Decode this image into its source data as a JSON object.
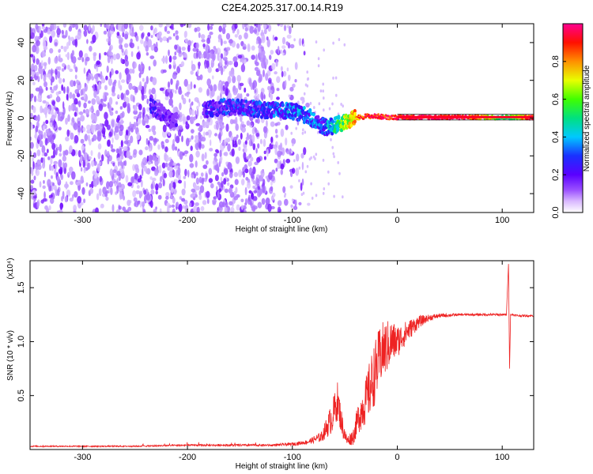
{
  "title": "C2E4.2025.317.00.14.R19",
  "chart_data": [
    {
      "type": "heatmap",
      "title": "C2E4.2025.317.00.14.R19",
      "xlabel": "Height of straight line (km)",
      "ylabel": "Frequency (Hz)",
      "xlim": [
        -350,
        130
      ],
      "ylim": [
        -50,
        50
      ],
      "xticks": [
        -300,
        -200,
        -100,
        0,
        100
      ],
      "yticks": [
        -40,
        -20,
        0,
        20,
        40
      ],
      "colorbar": {
        "label": "Normalized spectral amplitude",
        "range": [
          0.0,
          1.0
        ],
        "ticks": [
          0.0,
          0.2,
          0.4,
          0.6,
          0.8
        ],
        "tick_labels": [
          "0.0",
          "0.2",
          "0.4",
          "0.6",
          "0.8"
        ],
        "colors": [
          "#ffffff",
          "#b07cff",
          "#6a00ff",
          "#2020ff",
          "#00c8ff",
          "#00e080",
          "#40ff00",
          "#ffff00",
          "#ff8000",
          "#ff0000",
          "#ff0080"
        ]
      },
      "signal_track": {
        "height_km": [
          -235,
          -225,
          -215,
          -180,
          -160,
          -140,
          -120,
          -110,
          -95,
          -85,
          -75,
          -68,
          -60,
          -50,
          -40,
          -30,
          -20,
          -10,
          0,
          20,
          60,
          105,
          130
        ],
        "frequency_hz": [
          6,
          3,
          -2,
          5,
          6,
          5,
          4,
          4,
          3,
          1,
          -3,
          -5,
          -4,
          -2,
          0,
          1,
          1,
          0.5,
          0.5,
          0.5,
          0.5,
          0.5,
          0.5
        ],
        "amplitude": [
          0.2,
          0.15,
          0.1,
          0.2,
          0.25,
          0.25,
          0.25,
          0.3,
          0.35,
          0.3,
          0.3,
          0.3,
          0.45,
          0.6,
          0.8,
          0.9,
          0.9,
          0.9,
          0.92,
          0.95,
          0.95,
          0.5,
          0.95
        ]
      },
      "noise_region_km": [
        -350,
        -100
      ],
      "grid": false
    },
    {
      "type": "line",
      "xlabel": "Height of straight line (km)",
      "ylabel": "SNR (10 * v/v)",
      "y_multiplier": "(x10⁴)",
      "xlim": [
        -350,
        130
      ],
      "ylim": [
        0,
        1.75
      ],
      "xticks": [
        -300,
        -200,
        -100,
        0,
        100
      ],
      "yticks": [
        0.5,
        1.0,
        1.5
      ],
      "ytick_labels": [
        "0.5",
        "1.0",
        "1.5"
      ],
      "color": "#ee2222",
      "series": [
        {
          "x": [
            -350,
            -250,
            -200,
            -150,
            -120,
            -100,
            -85,
            -72,
            -62,
            -57,
            -52,
            -48,
            -42,
            -37,
            -30,
            -25,
            -20,
            -15,
            -10,
            -5,
            0,
            10,
            20,
            30,
            40,
            60,
            80,
            95,
            100,
            104,
            106,
            107,
            108,
            110,
            115,
            130
          ],
          "y": [
            0.03,
            0.03,
            0.04,
            0.04,
            0.04,
            0.05,
            0.07,
            0.12,
            0.3,
            0.45,
            0.2,
            0.08,
            0.12,
            0.3,
            0.45,
            0.6,
            0.75,
            0.9,
            0.95,
            1.0,
            1.0,
            1.1,
            1.18,
            1.22,
            1.24,
            1.25,
            1.25,
            1.25,
            1.25,
            1.25,
            1.72,
            0.75,
            1.25,
            1.25,
            1.24,
            1.24
          ],
          "noise_amplitude": [
            0.006,
            0.006,
            0.008,
            0.01,
            0.01,
            0.015,
            0.02,
            0.05,
            0.15,
            0.18,
            0.1,
            0.04,
            0.08,
            0.15,
            0.22,
            0.28,
            0.3,
            0.28,
            0.25,
            0.2,
            0.15,
            0.1,
            0.06,
            0.03,
            0.02,
            0.01,
            0.01,
            0.01,
            0.01,
            0.01,
            0,
            0,
            0.01,
            0.01,
            0.01,
            0.01
          ]
        }
      ],
      "grid": false
    }
  ]
}
